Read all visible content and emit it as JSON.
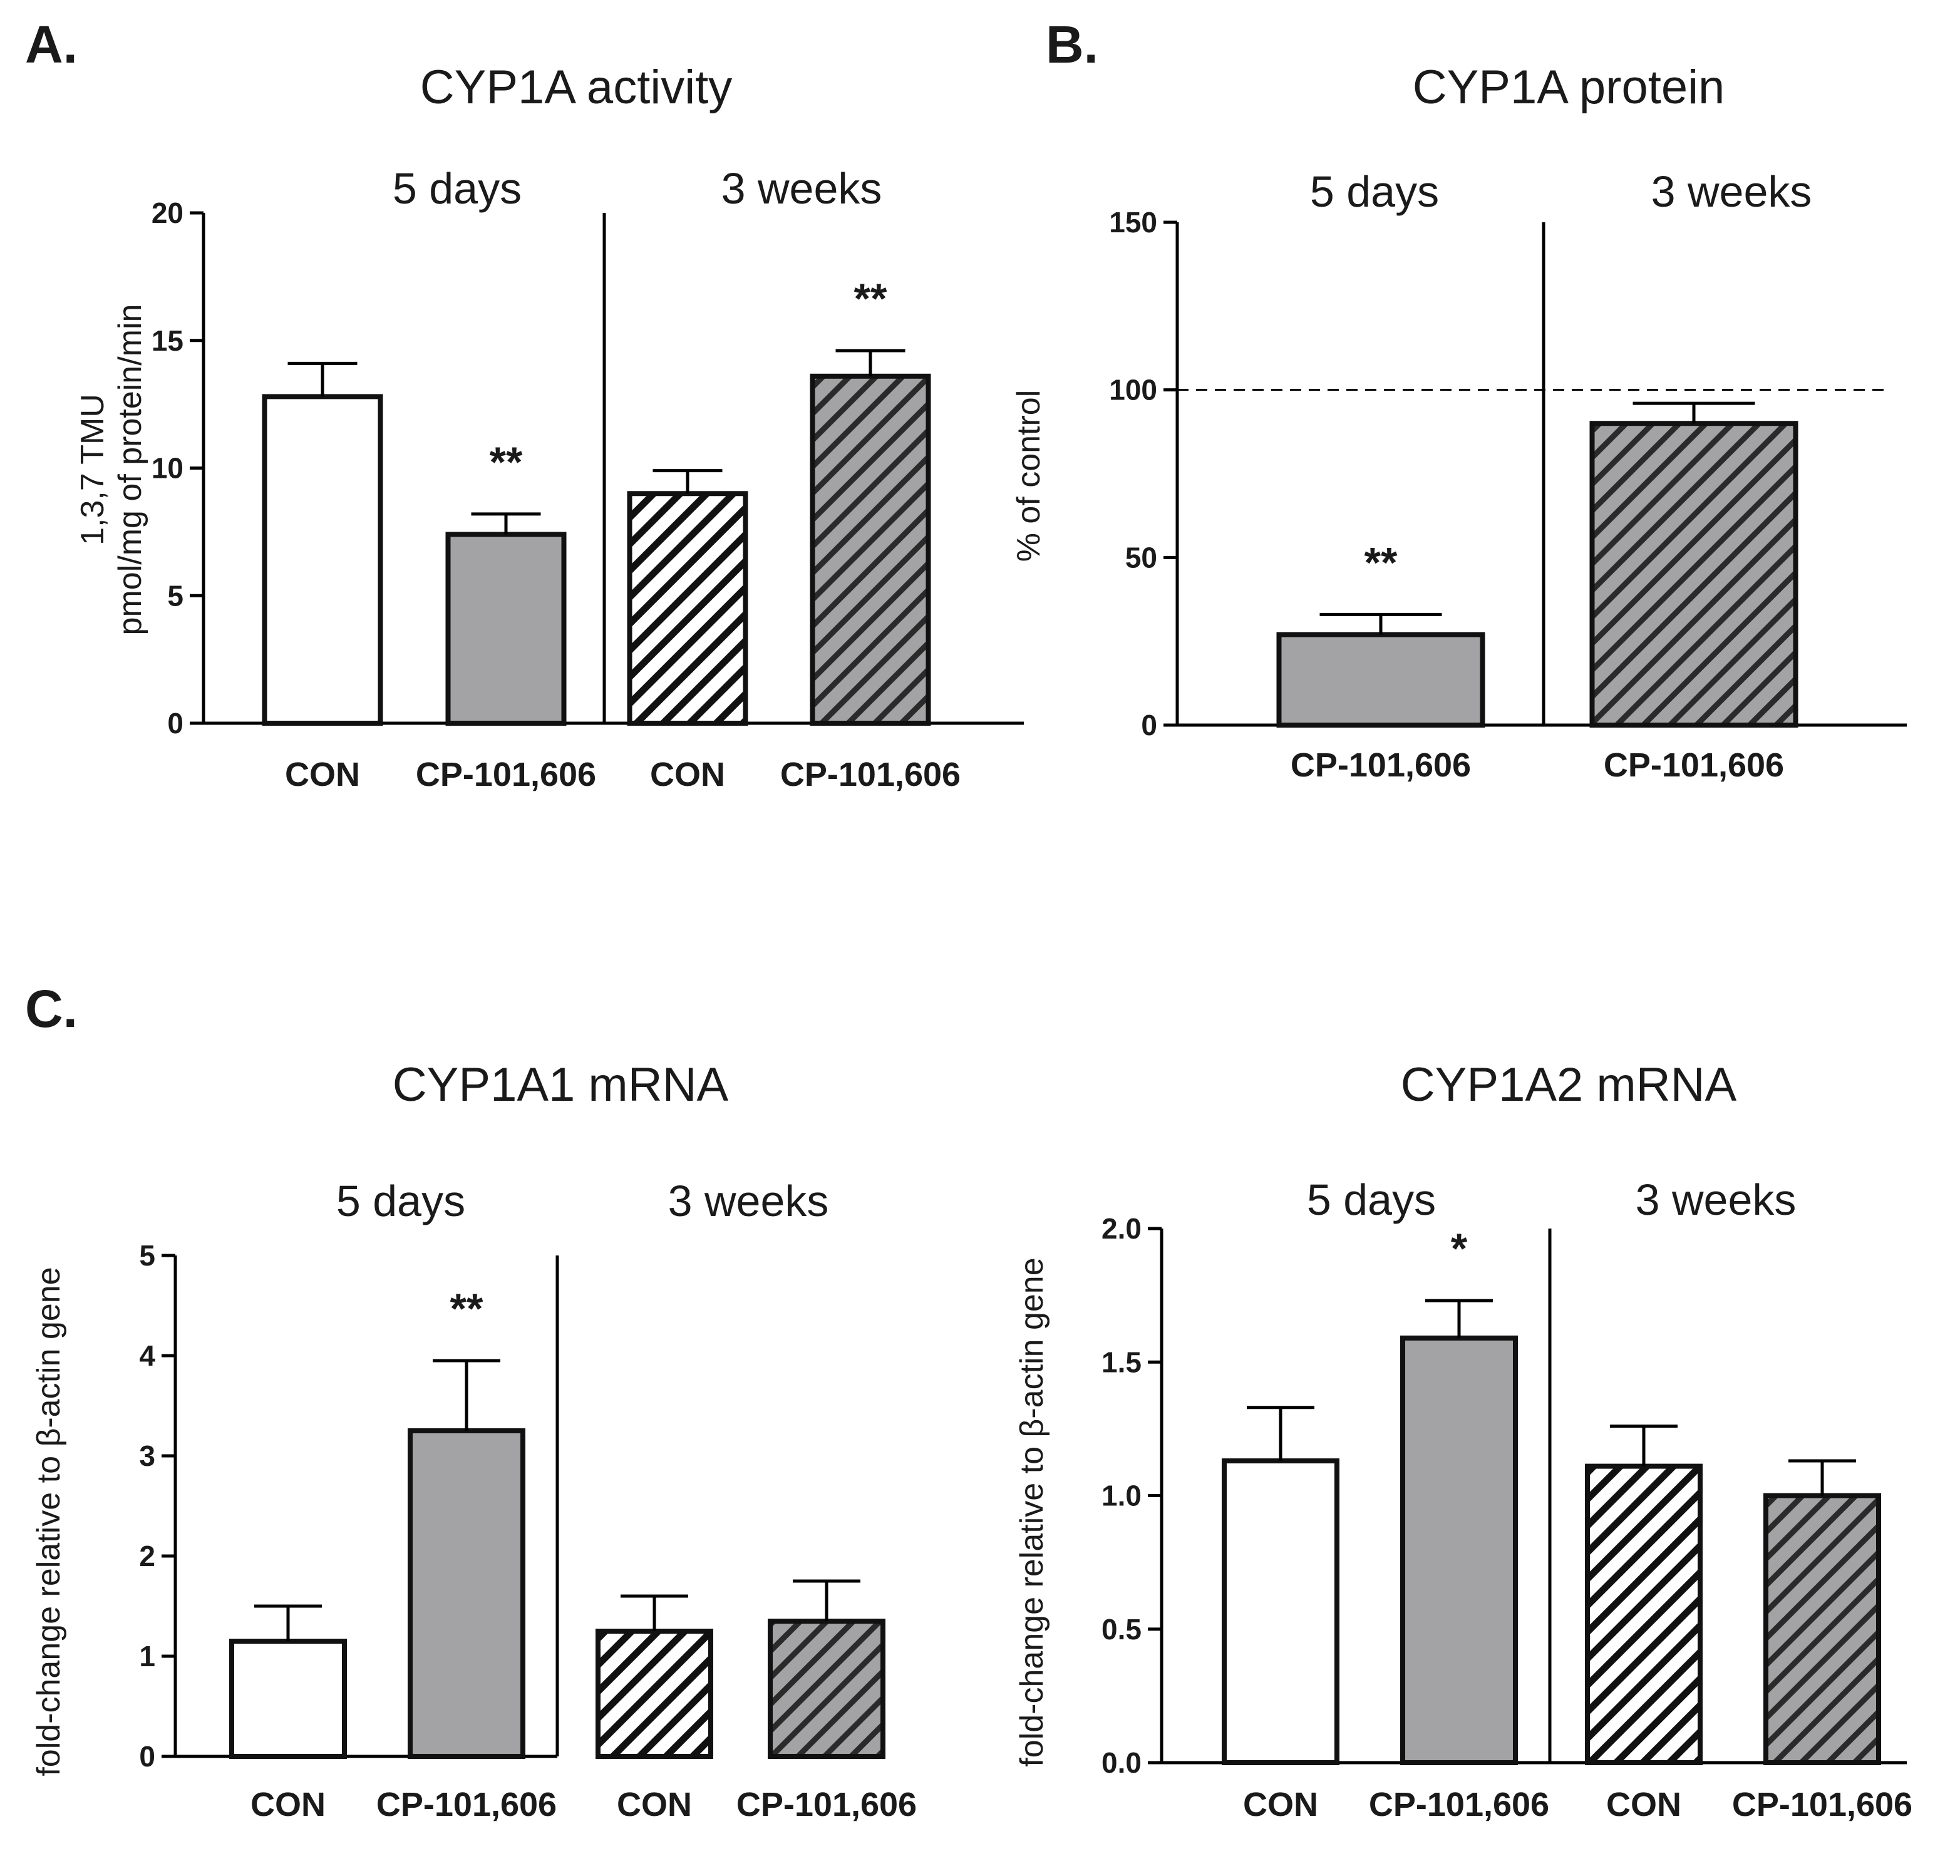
{
  "panel_letters": [
    "A.",
    "B.",
    "C."
  ],
  "colors": {
    "axis": "#000000",
    "bar_outline": "#111111",
    "open_fill": "#ffffff",
    "treated_fill": "#a3a3a5",
    "hatch_dark": "#111111",
    "text": "#1a1a1a"
  },
  "chart_data": [
    {
      "id": "A",
      "type": "bar",
      "title": "CYP1A activity",
      "ylabel": [
        "1,3,7 TMU",
        "pmol/mg of protein/min"
      ],
      "ylim": [
        0,
        20
      ],
      "yticks": [
        0,
        5,
        10,
        15,
        20
      ],
      "periods": [
        "5 days",
        "3 weeks"
      ],
      "categories": [
        "CON",
        "CP-101,606",
        "CON",
        "CP-101,606"
      ],
      "values": [
        12.8,
        7.4,
        9.0,
        13.6
      ],
      "errors": [
        1.3,
        0.8,
        0.9,
        1.0
      ],
      "significance": [
        "",
        "**",
        "",
        "**"
      ],
      "styles": [
        "open",
        "solid",
        "hatch-open",
        "hatch-solid"
      ],
      "reference_line": null
    },
    {
      "id": "B",
      "type": "bar",
      "title": "CYP1A protein",
      "ylabel": [
        "% of control"
      ],
      "ylim": [
        0,
        150
      ],
      "yticks": [
        0,
        50,
        100,
        150
      ],
      "periods": [
        "5 days",
        "3 weeks"
      ],
      "categories": [
        "CP-101,606",
        "CP-101,606"
      ],
      "values": [
        27,
        90
      ],
      "errors": [
        6,
        6
      ],
      "significance": [
        "**",
        ""
      ],
      "styles": [
        "solid",
        "hatch-solid"
      ],
      "reference_line": 100
    },
    {
      "id": "C1",
      "type": "bar",
      "title": "CYP1A1 mRNA",
      "ylabel": [
        "fold-change relative to β-actin gene"
      ],
      "ylim": [
        0,
        5
      ],
      "yticks": [
        0,
        1,
        2,
        3,
        4,
        5
      ],
      "periods": [
        "5 days",
        "3 weeks"
      ],
      "categories": [
        "CON",
        "CP-101,606",
        "CON",
        "CP-101,606"
      ],
      "values": [
        1.15,
        3.25,
        1.25,
        1.35
      ],
      "errors": [
        0.35,
        0.7,
        0.35,
        0.4
      ],
      "significance": [
        "",
        "**",
        "",
        ""
      ],
      "styles": [
        "open",
        "solid",
        "hatch-open",
        "hatch-solid"
      ],
      "reference_line": null
    },
    {
      "id": "C2",
      "type": "bar",
      "title": "CYP1A2 mRNA",
      "ylabel": [
        "fold-change relative to β-actin gene"
      ],
      "ylim": [
        0,
        2.0
      ],
      "yticks": [
        "0.0",
        "0.5",
        "1.0",
        "1.5",
        "2.0"
      ],
      "periods": [
        "5 days",
        "3 weeks"
      ],
      "categories": [
        "CON",
        "CP-101,606",
        "CON",
        "CP-101,606"
      ],
      "values": [
        1.13,
        1.59,
        1.11,
        1.0
      ],
      "errors": [
        0.2,
        0.14,
        0.15,
        0.13
      ],
      "significance": [
        "",
        "*",
        "",
        ""
      ],
      "styles": [
        "open",
        "solid",
        "hatch-open",
        "hatch-solid"
      ],
      "reference_line": null
    }
  ]
}
